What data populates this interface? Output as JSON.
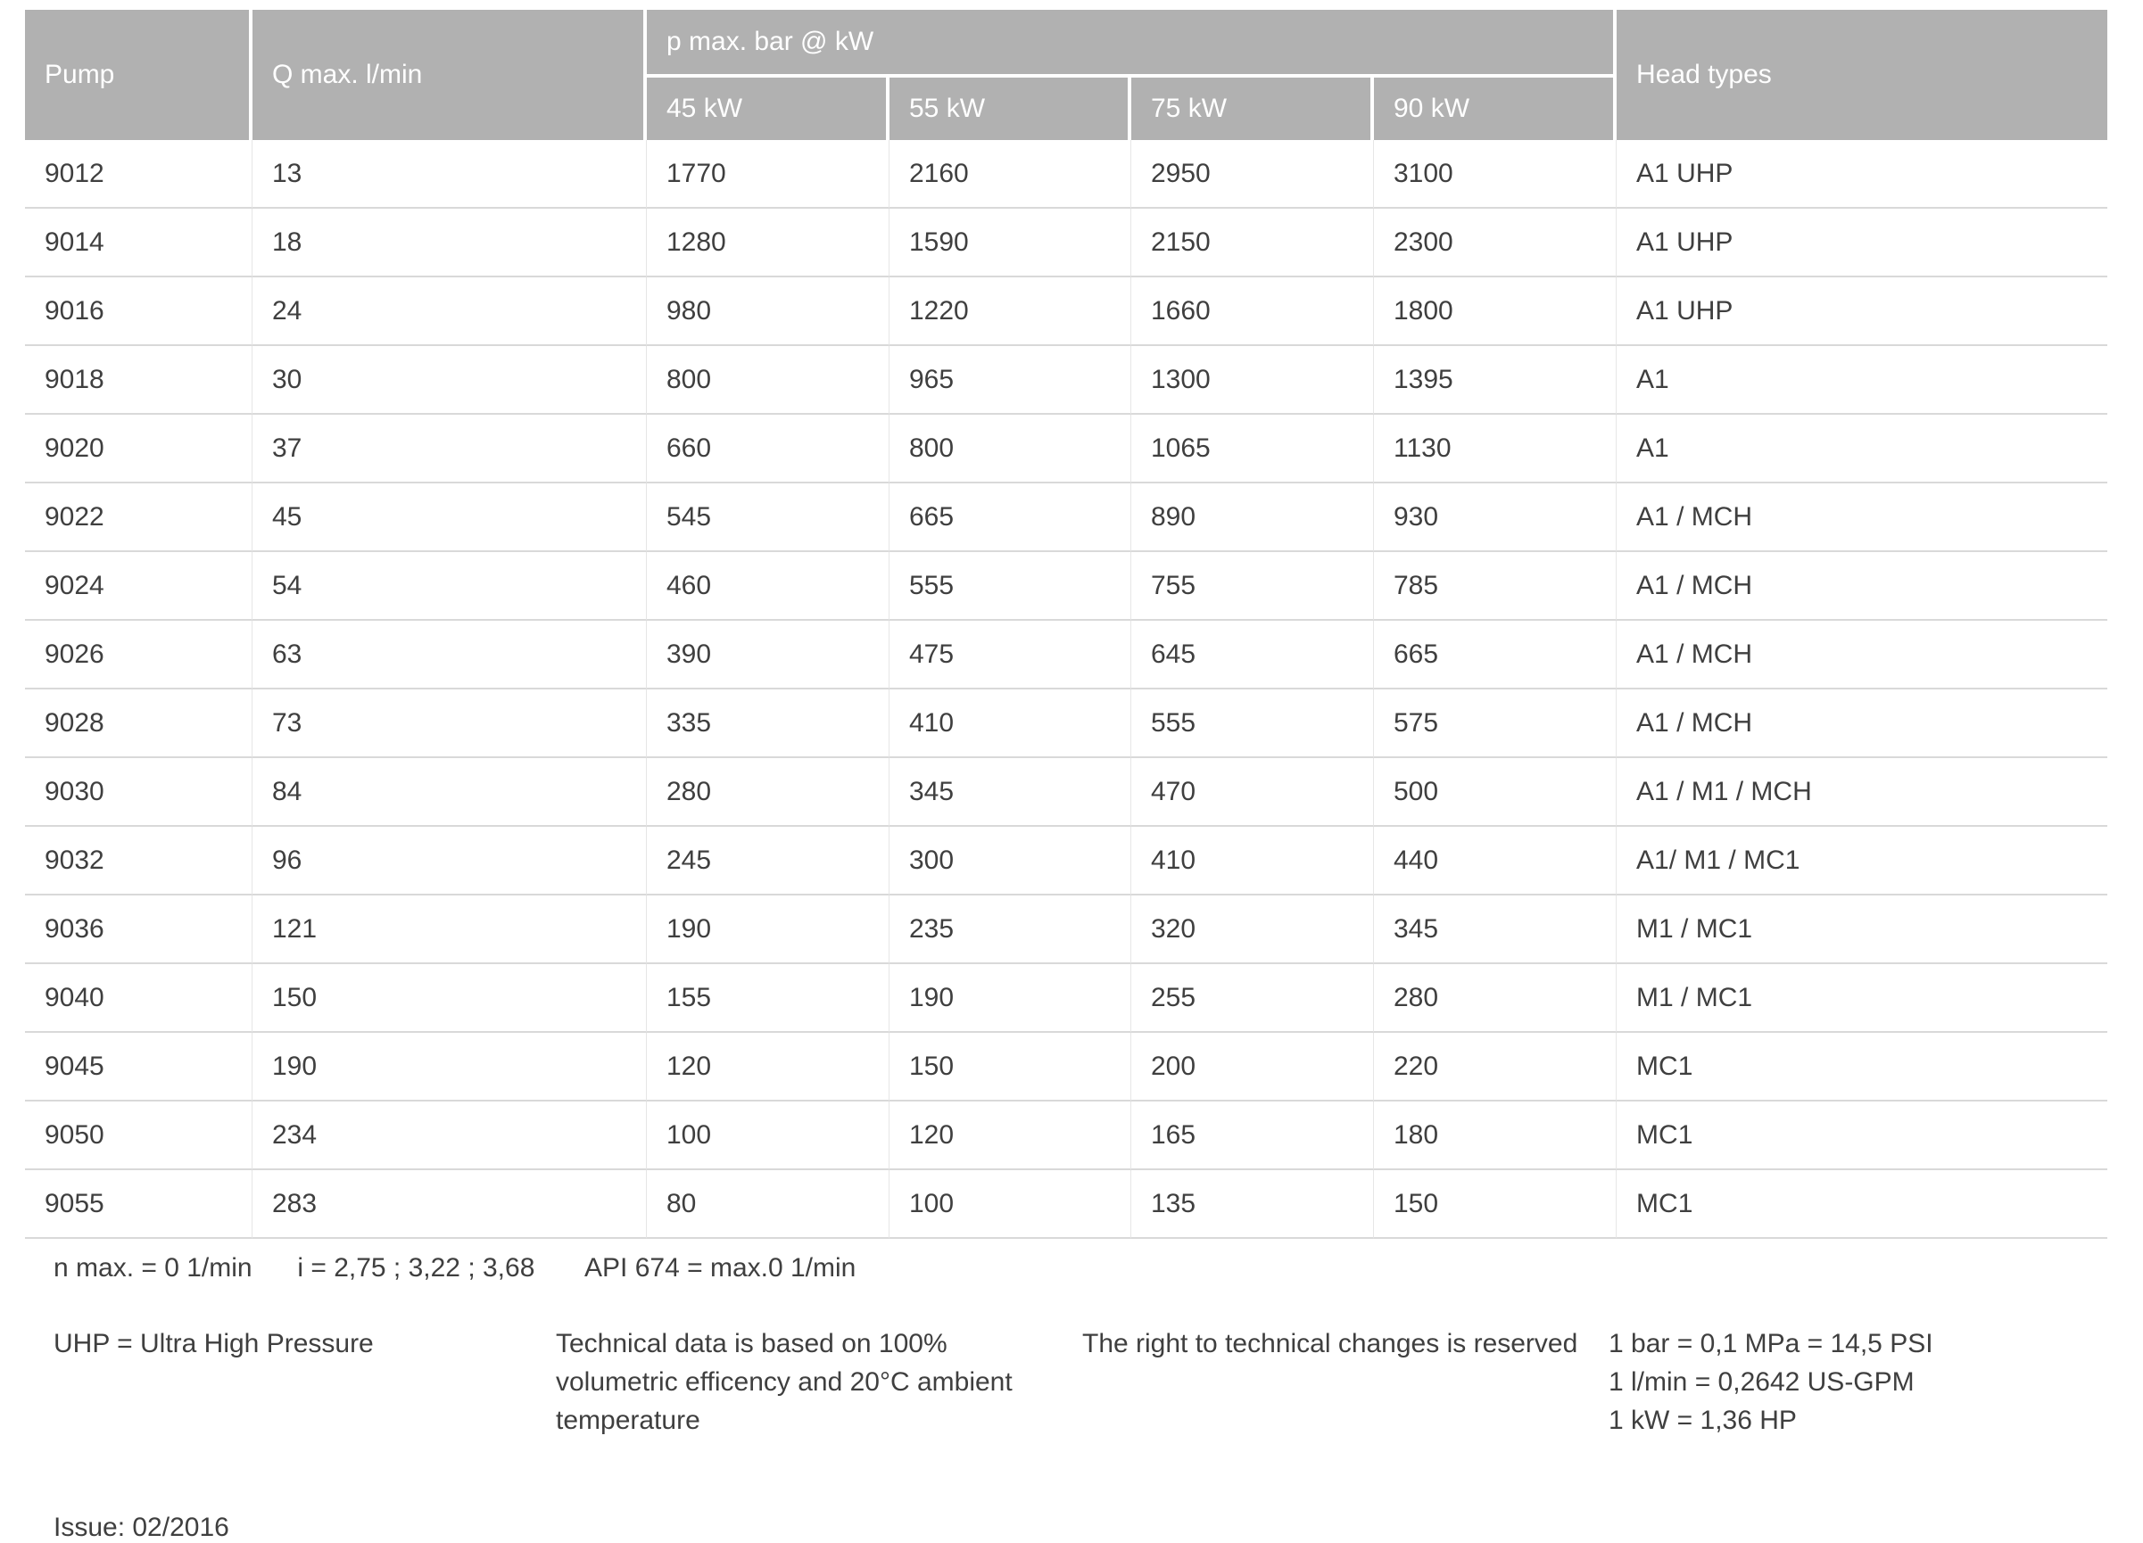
{
  "table": {
    "headers": {
      "pump": "Pump",
      "q_max": "Q max. l/min",
      "p_max_group": "p max. bar @ kW",
      "kw_columns": [
        "45 kW",
        "55 kW",
        "75 kW",
        "90 kW"
      ],
      "head_types": "Head types"
    },
    "rows": [
      {
        "pump": "9012",
        "q": "13",
        "kw45": "1770",
        "kw55": "2160",
        "kw75": "2950",
        "kw90": "3100",
        "head": "A1 UHP"
      },
      {
        "pump": "9014",
        "q": "18",
        "kw45": "1280",
        "kw55": "1590",
        "kw75": "2150",
        "kw90": "2300",
        "head": "A1 UHP"
      },
      {
        "pump": "9016",
        "q": "24",
        "kw45": "980",
        "kw55": "1220",
        "kw75": "1660",
        "kw90": "1800",
        "head": "A1 UHP"
      },
      {
        "pump": "9018",
        "q": "30",
        "kw45": "800",
        "kw55": "965",
        "kw75": "1300",
        "kw90": "1395",
        "head": "A1"
      },
      {
        "pump": "9020",
        "q": "37",
        "kw45": "660",
        "kw55": "800",
        "kw75": "1065",
        "kw90": "1130",
        "head": "A1"
      },
      {
        "pump": "9022",
        "q": "45",
        "kw45": "545",
        "kw55": "665",
        "kw75": "890",
        "kw90": "930",
        "head": "A1 / MCH"
      },
      {
        "pump": "9024",
        "q": "54",
        "kw45": "460",
        "kw55": "555",
        "kw75": "755",
        "kw90": "785",
        "head": "A1 / MCH"
      },
      {
        "pump": "9026",
        "q": "63",
        "kw45": "390",
        "kw55": "475",
        "kw75": "645",
        "kw90": "665",
        "head": "A1 / MCH"
      },
      {
        "pump": "9028",
        "q": "73",
        "kw45": "335",
        "kw55": "410",
        "kw75": "555",
        "kw90": "575",
        "head": "A1 / MCH"
      },
      {
        "pump": "9030",
        "q": "84",
        "kw45": "280",
        "kw55": "345",
        "kw75": "470",
        "kw90": "500",
        "head": "A1 / M1 / MCH"
      },
      {
        "pump": "9032",
        "q": "96",
        "kw45": "245",
        "kw55": "300",
        "kw75": "410",
        "kw90": "440",
        "head": "A1/ M1 / MC1"
      },
      {
        "pump": "9036",
        "q": "121",
        "kw45": "190",
        "kw55": "235",
        "kw75": "320",
        "kw90": "345",
        "head": "M1 / MC1"
      },
      {
        "pump": "9040",
        "q": "150",
        "kw45": "155",
        "kw55": "190",
        "kw75": "255",
        "kw90": "280",
        "head": "M1 / MC1"
      },
      {
        "pump": "9045",
        "q": "190",
        "kw45": "120",
        "kw55": "150",
        "kw75": "200",
        "kw90": "220",
        "head": "MC1"
      },
      {
        "pump": "9050",
        "q": "234",
        "kw45": "100",
        "kw55": "120",
        "kw75": "165",
        "kw90": "180",
        "head": "MC1"
      },
      {
        "pump": "9055",
        "q": "283",
        "kw45": "80",
        "kw55": "100",
        "kw75": "135",
        "kw90": "150",
        "head": "MC1"
      }
    ]
  },
  "footnotes": {
    "line1": {
      "n_max": "n max. = 0 1/min",
      "i_ratios": "i = 2,75 ; 3,22 ; 3,68",
      "api": "API 674 = max.0 1/min"
    },
    "uhp": "UHP = Ultra High Pressure",
    "technical": "Technical data is based on 100% volumetric efficency and 20°C ambient temperature",
    "rights": "The right to technical changes is reserved",
    "conversions": [
      "1 bar = 0,1 MPa = 14,5 PSI",
      "1 l/min = 0,2642 US-GPM",
      "1 kW = 1,36 HP"
    ]
  },
  "issue": "Issue: 02/2016",
  "colors": {
    "header_bg": "#b1b1b1",
    "header_text": "#ffffff",
    "body_text": "#3f3f3f",
    "row_line": "#d9d9d9",
    "col_line": "#e6e6e6"
  }
}
